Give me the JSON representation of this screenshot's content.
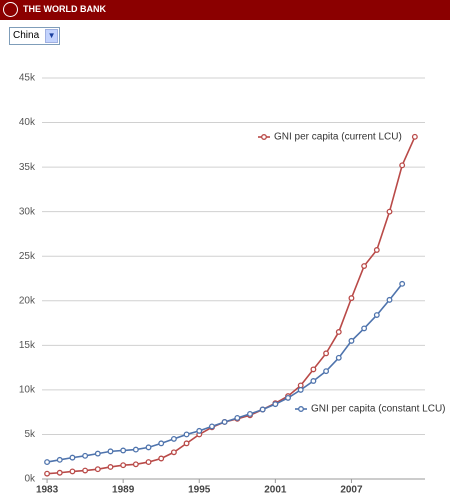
{
  "header": {
    "title": "THE WORLD BANK"
  },
  "selector": {
    "value": "China"
  },
  "chart_data": {
    "type": "line",
    "x": [
      1983,
      1984,
      1985,
      1986,
      1987,
      1988,
      1989,
      1990,
      1991,
      1992,
      1993,
      1994,
      1995,
      1996,
      1997,
      1998,
      1999,
      2000,
      2001,
      2002,
      2003,
      2004,
      2005,
      2006,
      2007,
      2008,
      2009,
      2010,
      2011,
      2012
    ],
    "series": [
      {
        "name": "GNI per capita (current LCU)",
        "color": "#b94a48",
        "values": [
          600,
          700,
          850,
          950,
          1100,
          1350,
          1550,
          1650,
          1900,
          2300,
          3000,
          4000,
          5000,
          5800,
          6400,
          6750,
          7150,
          7800,
          8500,
          9300,
          10500,
          12300,
          14100,
          16500,
          20300,
          23900,
          25700,
          30000,
          35200,
          38400
        ]
      },
      {
        "name": "GNI per capita (constant LCU)",
        "color": "#4f74ad",
        "values": [
          1900,
          2150,
          2400,
          2600,
          2850,
          3100,
          3200,
          3300,
          3550,
          4000,
          4500,
          5000,
          5400,
          5900,
          6400,
          6850,
          7300,
          7800,
          8400,
          9100,
          10000,
          11000,
          12100,
          13600,
          15500,
          16900,
          18400,
          20100,
          21900,
          null
        ]
      }
    ],
    "xlim": [
      1982.6,
      2012.8
    ],
    "xticks": [
      1983,
      1989,
      1995,
      2001,
      2007
    ],
    "ylim": [
      0,
      45000
    ],
    "yticks": [
      {
        "value": 0,
        "label": "0k"
      },
      {
        "value": 5000,
        "label": "5k"
      },
      {
        "value": 10000,
        "label": "10k"
      },
      {
        "value": 15000,
        "label": "15k"
      },
      {
        "value": 20000,
        "label": "20k"
      },
      {
        "value": 25000,
        "label": "25k"
      },
      {
        "value": 30000,
        "label": "30k"
      },
      {
        "value": 35000,
        "label": "35k"
      },
      {
        "value": 40000,
        "label": "40k"
      },
      {
        "value": 45000,
        "label": "45k"
      }
    ],
    "grid": true
  }
}
